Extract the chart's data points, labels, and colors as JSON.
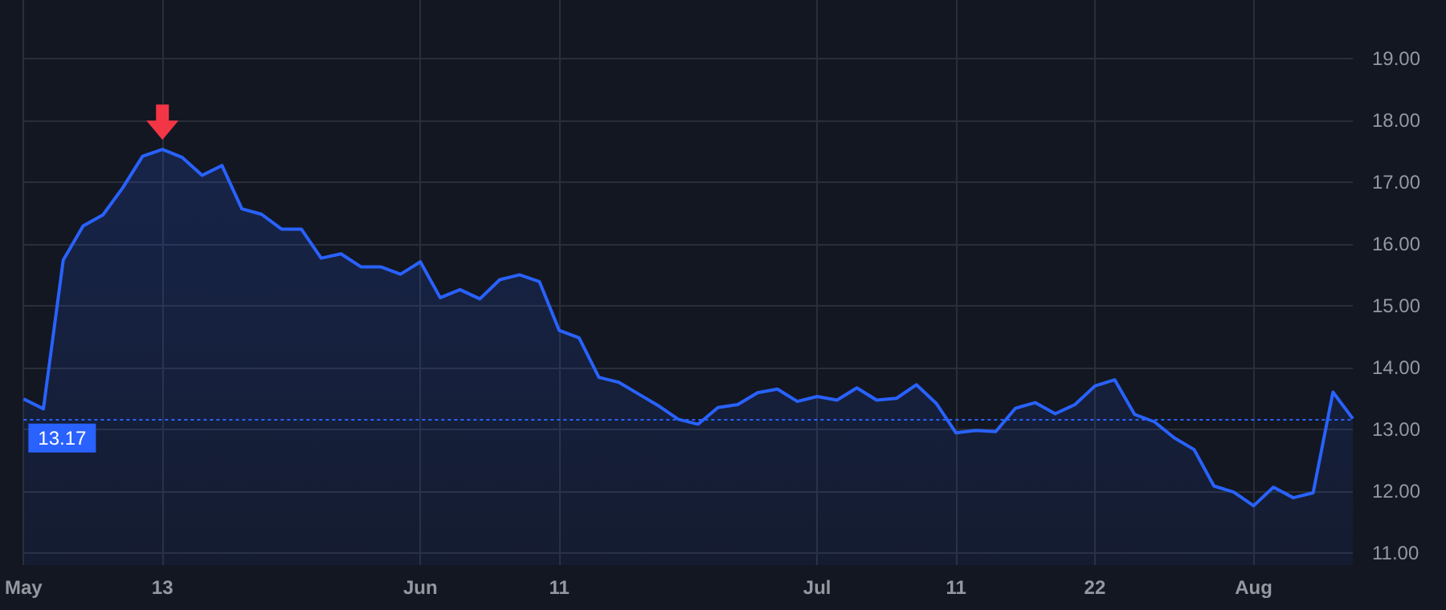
{
  "chart_data": {
    "type": "area",
    "categories": [
      "May",
      null,
      null,
      null,
      null,
      null,
      null,
      "13",
      null,
      null,
      null,
      null,
      null,
      null,
      null,
      null,
      null,
      null,
      null,
      null,
      "Jun",
      null,
      null,
      null,
      null,
      null,
      null,
      "11",
      null,
      null,
      null,
      null,
      null,
      null,
      null,
      null,
      null,
      null,
      null,
      null,
      "Jul",
      null,
      null,
      null,
      null,
      null,
      null,
      "11",
      null,
      null,
      null,
      null,
      null,
      null,
      "22",
      null,
      null,
      null,
      null,
      null,
      null,
      null,
      "Aug",
      null,
      null,
      null,
      null,
      null
    ],
    "series": [
      {
        "color": "#2962ff",
        "values": [
          13.49,
          13.33,
          15.74,
          16.29,
          16.47,
          16.91,
          17.42,
          17.53,
          17.4,
          17.11,
          17.27,
          16.57,
          16.48,
          16.24,
          16.24,
          15.77,
          15.84,
          15.63,
          15.63,
          15.51,
          15.71,
          15.13,
          15.26,
          15.11,
          15.42,
          15.5,
          15.39,
          14.6,
          14.48,
          13.84,
          13.76,
          13.57,
          13.38,
          13.16,
          13.08,
          13.35,
          13.4,
          13.59,
          13.65,
          13.45,
          13.53,
          13.47,
          13.67,
          13.47,
          13.5,
          13.72,
          13.42,
          12.94,
          12.98,
          12.96,
          13.34,
          13.43,
          13.25,
          13.4,
          13.7,
          13.8,
          13.24,
          13.12,
          12.86,
          12.67,
          12.08,
          11.98,
          11.76,
          12.06,
          11.89,
          11.97,
          13.6,
          13.17
        ]
      }
    ],
    "ylim": [
      10.8,
      19.95
    ],
    "yticks": [
      {
        "value": 11,
        "label": "11.00"
      },
      {
        "value": 12,
        "label": "12.00"
      },
      {
        "value": 13,
        "label": "13.00"
      },
      {
        "value": 14,
        "label": "14.00"
      },
      {
        "value": 15,
        "label": "15.00"
      },
      {
        "value": 16,
        "label": "16.00"
      },
      {
        "value": 17,
        "label": "17.00"
      },
      {
        "value": 18,
        "label": "18.00"
      },
      {
        "value": 19,
        "label": "19.00"
      }
    ],
    "ref_lines": [
      {
        "axis": "y",
        "value": 13.17,
        "label": "13.17",
        "color": "#2962ff",
        "line_style": "dotted"
      }
    ],
    "grid": true
  }
}
